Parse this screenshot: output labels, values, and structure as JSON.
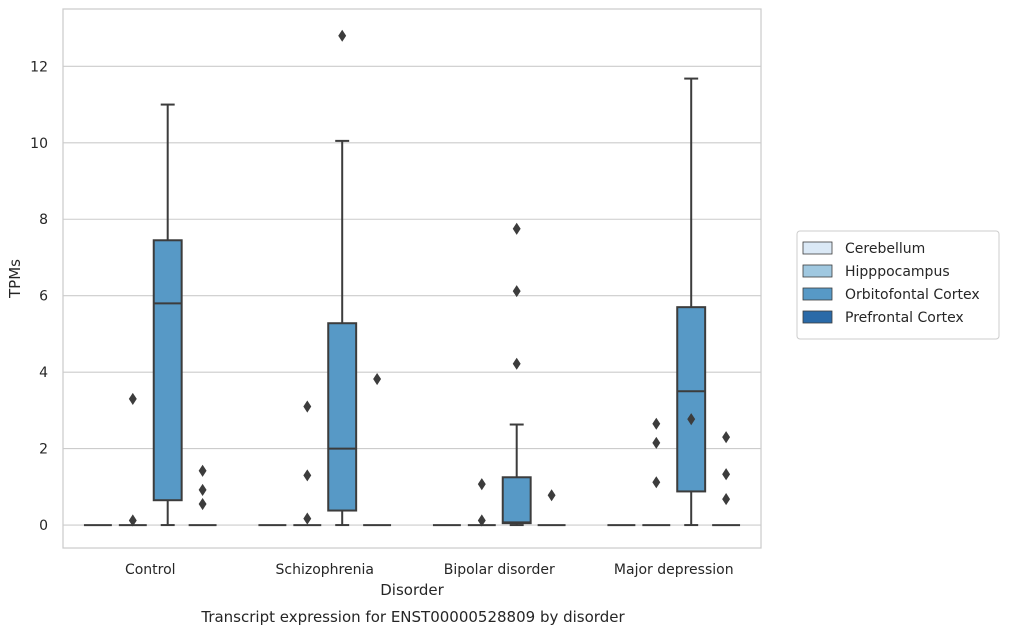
{
  "chart_data": {
    "type": "box",
    "caption": "Transcript expression for ENST00000528809 by disorder",
    "xlabel": "Disorder",
    "ylabel": "TPMs",
    "ylim": [
      -0.6,
      13.5
    ],
    "yticks": [
      0,
      2,
      4,
      6,
      8,
      10,
      12
    ],
    "grid": true,
    "legend_position": "right",
    "categories": [
      "Control",
      "Schizophrenia",
      "Bipolar disorder",
      "Major depression"
    ],
    "series": [
      {
        "name": "Cerebellum",
        "color": "#dbe9f6",
        "boxes": [
          {
            "q1": 0,
            "median": 0,
            "q3": 0,
            "whisker_low": 0,
            "whisker_high": 0,
            "outliers": []
          },
          {
            "q1": 0,
            "median": 0,
            "q3": 0,
            "whisker_low": 0,
            "whisker_high": 0,
            "outliers": []
          },
          {
            "q1": 0,
            "median": 0,
            "q3": 0,
            "whisker_low": 0,
            "whisker_high": 0,
            "outliers": []
          },
          {
            "q1": 0,
            "median": 0,
            "q3": 0,
            "whisker_low": 0,
            "whisker_high": 0,
            "outliers": []
          }
        ]
      },
      {
        "name": "Hipppocampus",
        "color": "#a0c8e0",
        "boxes": [
          {
            "q1": 0,
            "median": 0,
            "q3": 0,
            "whisker_low": 0,
            "whisker_high": 0,
            "outliers": [
              0.12,
              3.3
            ]
          },
          {
            "q1": 0,
            "median": 0,
            "q3": 0,
            "whisker_low": 0,
            "whisker_high": 0,
            "outliers": [
              0.17,
              1.3,
              3.1
            ]
          },
          {
            "q1": 0,
            "median": 0,
            "q3": 0,
            "whisker_low": 0,
            "whisker_high": 0,
            "outliers": [
              0.12,
              1.07
            ]
          },
          {
            "q1": 0,
            "median": 0,
            "q3": 0,
            "whisker_low": 0,
            "whisker_high": 0,
            "outliers": [
              1.12,
              2.15,
              2.65
            ]
          }
        ]
      },
      {
        "name": "Orbitofontal Cortex",
        "color": "#5799c6",
        "boxes": [
          {
            "q1": 0.65,
            "median": 5.8,
            "q3": 7.45,
            "whisker_low": 0,
            "whisker_high": 11.0,
            "outliers": []
          },
          {
            "q1": 0.38,
            "median": 2.0,
            "q3": 5.28,
            "whisker_low": 0,
            "whisker_high": 10.05,
            "outliers": [
              12.8
            ]
          },
          {
            "q1": 0.05,
            "median": 0.07,
            "q3": 1.25,
            "whisker_low": 0,
            "whisker_high": 2.63,
            "outliers": [
              4.22,
              6.12,
              7.75
            ]
          },
          {
            "q1": 0.88,
            "median": 3.5,
            "q3": 5.7,
            "whisker_low": 0,
            "whisker_high": 11.68,
            "outliers": [
              2.77
            ]
          }
        ]
      },
      {
        "name": "Prefrontal Cortex",
        "color": "#2a6aa8",
        "boxes": [
          {
            "q1": 0,
            "median": 0,
            "q3": 0,
            "whisker_low": 0,
            "whisker_high": 0,
            "outliers": [
              0.55,
              0.92,
              1.42
            ]
          },
          {
            "q1": 0,
            "median": 0,
            "q3": 0,
            "whisker_low": 0,
            "whisker_high": 0,
            "outliers": [
              3.82
            ]
          },
          {
            "q1": 0,
            "median": 0,
            "q3": 0,
            "whisker_low": 0,
            "whisker_high": 0,
            "outliers": [
              0.78
            ]
          },
          {
            "q1": 0,
            "median": 0,
            "q3": 0,
            "whisker_low": 0,
            "whisker_high": 0,
            "outliers": [
              0.68,
              1.33,
              2.3
            ]
          }
        ]
      }
    ]
  }
}
